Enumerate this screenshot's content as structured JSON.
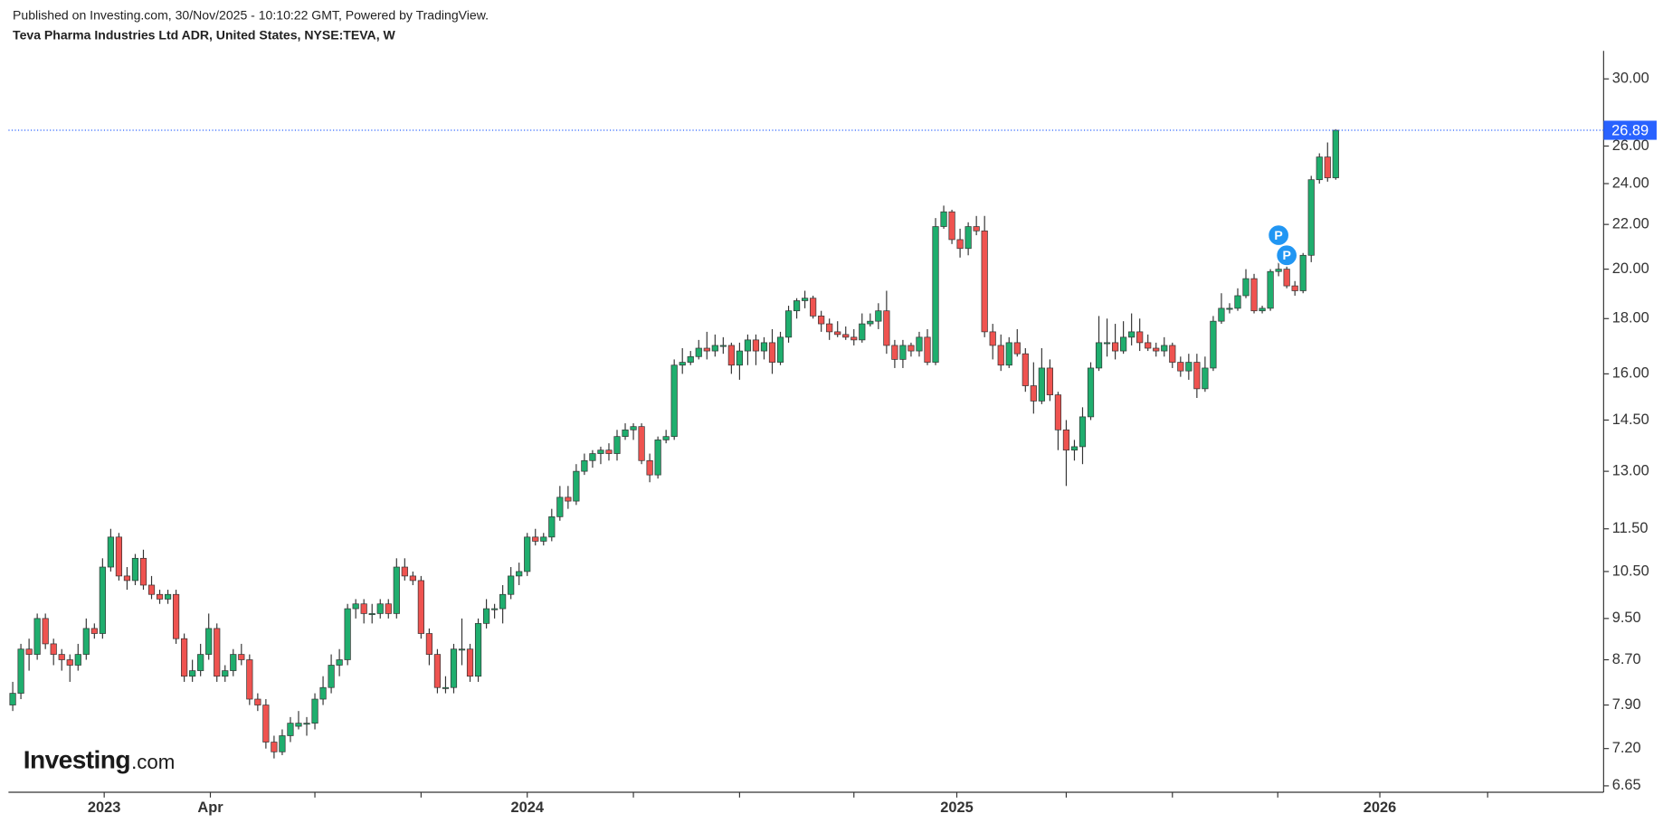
{
  "header": {
    "published": "Published on Investing.com, 30/Nov/2025 - 10:10:22 GMT, Powered by TradingView.",
    "instrument": "Teva Pharma Industries Ltd ADR, United States, NYSE:TEVA, W"
  },
  "logo": {
    "main": "Investing",
    "suffix": ".com"
  },
  "chart_data": {
    "type": "candlestick",
    "log_scale": true,
    "up_color": "#1fae6e",
    "down_color": "#ef5350",
    "last_price": 26.89,
    "last_price_color": "#2962ff",
    "xlim": [
      -0.52,
      194.8
    ],
    "ylim": [
      6.56,
      31.7
    ],
    "xticks": [
      {
        "value": 11.2,
        "label": "2023"
      },
      {
        "value": 24.2,
        "label": "Apr"
      },
      {
        "value": 63.0,
        "label": "2024"
      },
      {
        "value": 115.6,
        "label": "2025"
      },
      {
        "value": 167.4,
        "label": "2026"
      }
    ],
    "xminorticks": [
      37.0,
      50.0,
      76.0,
      89.0,
      103.0,
      129.0,
      142.0,
      154.9,
      180.6
    ],
    "yticks": [
      {
        "value": 6.65,
        "label": "6.65"
      },
      {
        "value": 7.2,
        "label": "7.20"
      },
      {
        "value": 7.9,
        "label": "7.90"
      },
      {
        "value": 8.7,
        "label": "8.70"
      },
      {
        "value": 9.5,
        "label": "9.50"
      },
      {
        "value": 10.5,
        "label": "10.50"
      },
      {
        "value": 11.5,
        "label": "11.50"
      },
      {
        "value": 13,
        "label": "13.00"
      },
      {
        "value": 14.5,
        "label": "14.50"
      },
      {
        "value": 16,
        "label": "16.00"
      },
      {
        "value": 18,
        "label": "18.00"
      },
      {
        "value": 20,
        "label": "20.00"
      },
      {
        "value": 22,
        "label": "22.00"
      },
      {
        "value": 24,
        "label": "24.00"
      },
      {
        "value": 26,
        "label": "26.00"
      },
      {
        "value": 30,
        "label": "30.00"
      }
    ],
    "events": [
      {
        "label": "P",
        "index": 155,
        "value": 21.5
      },
      {
        "label": "P",
        "index": 156,
        "value": 20.6
      }
    ],
    "candles": [
      [
        7.9,
        8.3,
        7.8,
        8.1
      ],
      [
        8.1,
        9.0,
        8.0,
        8.9
      ],
      [
        8.9,
        9.1,
        8.5,
        8.8
      ],
      [
        8.8,
        9.6,
        8.7,
        9.5
      ],
      [
        9.5,
        9.6,
        8.9,
        9.0
      ],
      [
        9.0,
        9.1,
        8.6,
        8.8
      ],
      [
        8.8,
        8.9,
        8.5,
        8.7
      ],
      [
        8.7,
        8.8,
        8.3,
        8.6
      ],
      [
        8.6,
        9.0,
        8.5,
        8.8
      ],
      [
        8.8,
        9.5,
        8.7,
        9.3
      ],
      [
        9.3,
        9.4,
        9.1,
        9.2
      ],
      [
        9.2,
        10.8,
        9.1,
        10.6
      ],
      [
        10.6,
        11.5,
        10.5,
        11.3
      ],
      [
        11.3,
        11.4,
        10.3,
        10.4
      ],
      [
        10.4,
        10.6,
        10.1,
        10.3
      ],
      [
        10.3,
        10.9,
        10.2,
        10.8
      ],
      [
        10.8,
        11.0,
        10.1,
        10.2
      ],
      [
        10.2,
        10.4,
        9.9,
        10.0
      ],
      [
        10.0,
        10.1,
        9.8,
        9.9
      ],
      [
        9.9,
        10.1,
        9.8,
        10.0
      ],
      [
        10.0,
        10.1,
        9.0,
        9.1
      ],
      [
        9.1,
        9.2,
        8.3,
        8.4
      ],
      [
        8.4,
        8.7,
        8.3,
        8.5
      ],
      [
        8.5,
        9.0,
        8.4,
        8.8
      ],
      [
        8.8,
        9.6,
        8.7,
        9.3
      ],
      [
        9.3,
        9.4,
        8.3,
        8.4
      ],
      [
        8.4,
        8.6,
        8.3,
        8.5
      ],
      [
        8.5,
        8.9,
        8.4,
        8.8
      ],
      [
        8.8,
        9.0,
        8.6,
        8.7
      ],
      [
        8.7,
        8.8,
        7.9,
        8.0
      ],
      [
        8.0,
        8.1,
        7.8,
        7.9
      ],
      [
        7.9,
        8.0,
        7.2,
        7.3
      ],
      [
        7.3,
        7.4,
        7.05,
        7.15
      ],
      [
        7.15,
        7.5,
        7.1,
        7.4
      ],
      [
        7.4,
        7.7,
        7.3,
        7.6
      ],
      [
        7.55,
        7.8,
        7.5,
        7.6
      ],
      [
        7.6,
        7.7,
        7.4,
        7.6
      ],
      [
        7.6,
        8.1,
        7.5,
        8.0
      ],
      [
        8.0,
        8.4,
        7.9,
        8.2
      ],
      [
        8.2,
        8.8,
        8.1,
        8.6
      ],
      [
        8.6,
        8.9,
        8.4,
        8.7
      ],
      [
        8.7,
        9.8,
        8.6,
        9.7
      ],
      [
        9.7,
        9.9,
        9.5,
        9.8
      ],
      [
        9.8,
        9.9,
        9.4,
        9.6
      ],
      [
        9.6,
        9.8,
        9.4,
        9.6
      ],
      [
        9.6,
        9.9,
        9.5,
        9.8
      ],
      [
        9.8,
        9.9,
        9.5,
        9.6
      ],
      [
        9.6,
        10.8,
        9.5,
        10.6
      ],
      [
        10.6,
        10.8,
        10.3,
        10.4
      ],
      [
        10.4,
        10.5,
        10.2,
        10.3
      ],
      [
        10.3,
        10.4,
        9.1,
        9.2
      ],
      [
        9.2,
        9.3,
        8.6,
        8.8
      ],
      [
        8.8,
        8.9,
        8.1,
        8.2
      ],
      [
        8.2,
        8.4,
        8.1,
        8.2
      ],
      [
        8.2,
        9.0,
        8.1,
        8.9
      ],
      [
        8.9,
        9.5,
        8.6,
        8.9
      ],
      [
        8.9,
        9.0,
        8.3,
        8.4
      ],
      [
        8.4,
        9.5,
        8.3,
        9.4
      ],
      [
        9.4,
        9.9,
        9.3,
        9.7
      ],
      [
        9.7,
        9.8,
        9.5,
        9.7
      ],
      [
        9.7,
        10.2,
        9.4,
        10.0
      ],
      [
        10.0,
        10.6,
        9.9,
        10.4
      ],
      [
        10.4,
        10.7,
        10.2,
        10.5
      ],
      [
        10.5,
        11.4,
        10.4,
        11.3
      ],
      [
        11.3,
        11.5,
        11.1,
        11.2
      ],
      [
        11.2,
        11.4,
        11.1,
        11.3
      ],
      [
        11.3,
        12.0,
        11.2,
        11.8
      ],
      [
        11.8,
        12.6,
        11.7,
        12.3
      ],
      [
        12.3,
        12.6,
        12.0,
        12.2
      ],
      [
        12.2,
        13.2,
        12.1,
        13.0
      ],
      [
        13.0,
        13.5,
        12.9,
        13.3
      ],
      [
        13.3,
        13.6,
        13.1,
        13.5
      ],
      [
        13.5,
        13.7,
        13.2,
        13.6
      ],
      [
        13.6,
        13.8,
        13.3,
        13.5
      ],
      [
        13.5,
        14.2,
        13.3,
        14.0
      ],
      [
        14.0,
        14.4,
        13.9,
        14.2
      ],
      [
        14.2,
        14.4,
        13.9,
        14.3
      ],
      [
        14.3,
        14.4,
        13.2,
        13.3
      ],
      [
        13.3,
        13.5,
        12.7,
        12.9
      ],
      [
        12.9,
        14.0,
        12.8,
        13.9
      ],
      [
        13.9,
        14.2,
        13.8,
        14.0
      ],
      [
        14.0,
        16.5,
        13.9,
        16.3
      ],
      [
        16.3,
        16.9,
        16.0,
        16.4
      ],
      [
        16.4,
        16.8,
        16.3,
        16.6
      ],
      [
        16.6,
        17.2,
        16.5,
        16.9
      ],
      [
        16.9,
        17.5,
        16.5,
        16.8
      ],
      [
        16.8,
        17.4,
        16.6,
        17.0
      ],
      [
        17.0,
        17.3,
        16.7,
        17.0
      ],
      [
        17.0,
        17.1,
        16.0,
        16.3
      ],
      [
        16.3,
        17.1,
        15.8,
        16.8
      ],
      [
        16.8,
        17.4,
        16.3,
        17.2
      ],
      [
        17.2,
        17.4,
        16.3,
        16.8
      ],
      [
        16.8,
        17.3,
        16.5,
        17.1
      ],
      [
        17.1,
        17.6,
        16.0,
        16.4
      ],
      [
        16.4,
        17.5,
        16.3,
        17.3
      ],
      [
        17.3,
        18.5,
        17.1,
        18.3
      ],
      [
        18.3,
        18.8,
        18.0,
        18.7
      ],
      [
        18.7,
        19.1,
        18.4,
        18.8
      ],
      [
        18.8,
        18.9,
        18.0,
        18.1
      ],
      [
        18.1,
        18.3,
        17.5,
        17.8
      ],
      [
        17.8,
        18.0,
        17.2,
        17.5
      ],
      [
        17.5,
        17.9,
        17.3,
        17.4
      ],
      [
        17.4,
        17.7,
        17.2,
        17.3
      ],
      [
        17.3,
        17.6,
        17.0,
        17.2
      ],
      [
        17.2,
        18.2,
        17.1,
        17.8
      ],
      [
        17.8,
        18.2,
        17.7,
        17.9
      ],
      [
        17.9,
        18.6,
        17.6,
        18.3
      ],
      [
        18.3,
        19.1,
        16.7,
        17.0
      ],
      [
        17.0,
        17.2,
        16.2,
        16.5
      ],
      [
        16.5,
        17.2,
        16.2,
        17.0
      ],
      [
        17.0,
        17.1,
        16.6,
        16.8
      ],
      [
        16.8,
        17.5,
        16.6,
        17.3
      ],
      [
        17.3,
        17.6,
        16.3,
        16.4
      ],
      [
        16.4,
        22.3,
        16.3,
        21.9
      ],
      [
        21.9,
        22.9,
        21.8,
        22.6
      ],
      [
        22.6,
        22.7,
        21.1,
        21.3
      ],
      [
        21.3,
        21.8,
        20.5,
        20.9
      ],
      [
        20.9,
        22.1,
        20.6,
        21.9
      ],
      [
        21.9,
        22.4,
        21.5,
        21.7
      ],
      [
        21.7,
        22.4,
        17.3,
        17.5
      ],
      [
        17.5,
        17.8,
        16.5,
        17.0
      ],
      [
        17.0,
        17.4,
        16.1,
        16.3
      ],
      [
        16.3,
        17.3,
        16.2,
        17.1
      ],
      [
        17.1,
        17.6,
        16.6,
        16.7
      ],
      [
        16.7,
        16.9,
        15.4,
        15.6
      ],
      [
        15.6,
        16.4,
        14.7,
        15.1
      ],
      [
        15.1,
        16.9,
        15.0,
        16.2
      ],
      [
        16.2,
        16.5,
        15.1,
        15.3
      ],
      [
        15.3,
        15.4,
        13.6,
        14.2
      ],
      [
        14.2,
        14.5,
        12.6,
        13.6
      ],
      [
        13.6,
        13.9,
        13.3,
        13.7
      ],
      [
        13.7,
        14.9,
        13.2,
        14.6
      ],
      [
        14.6,
        16.4,
        14.5,
        16.2
      ],
      [
        16.2,
        18.1,
        16.1,
        17.1
      ],
      [
        17.1,
        18.0,
        16.6,
        17.1
      ],
      [
        17.1,
        17.8,
        16.5,
        16.8
      ],
      [
        16.8,
        17.9,
        16.7,
        17.3
      ],
      [
        17.3,
        18.2,
        17.0,
        17.5
      ],
      [
        17.5,
        18.0,
        16.8,
        17.1
      ],
      [
        17.1,
        17.4,
        16.8,
        16.9
      ],
      [
        16.9,
        17.1,
        16.6,
        16.8
      ],
      [
        16.8,
        17.3,
        16.6,
        17.0
      ],
      [
        17.0,
        17.1,
        16.2,
        16.4
      ],
      [
        16.4,
        16.6,
        15.9,
        16.1
      ],
      [
        16.1,
        16.7,
        15.8,
        16.4
      ],
      [
        16.4,
        16.7,
        15.2,
        15.5
      ],
      [
        15.5,
        16.6,
        15.4,
        16.2
      ],
      [
        16.2,
        18.1,
        16.1,
        17.9
      ],
      [
        17.9,
        19.0,
        17.8,
        18.4
      ],
      [
        18.4,
        18.6,
        18.2,
        18.4
      ],
      [
        18.4,
        19.2,
        18.3,
        18.9
      ],
      [
        18.9,
        20.0,
        18.8,
        19.6
      ],
      [
        19.6,
        19.8,
        18.2,
        18.3
      ],
      [
        18.3,
        18.5,
        18.2,
        18.4
      ],
      [
        18.4,
        20.0,
        18.3,
        19.9
      ],
      [
        19.9,
        20.8,
        19.7,
        20.0
      ],
      [
        20.0,
        20.2,
        19.2,
        19.3
      ],
      [
        19.3,
        19.5,
        18.9,
        19.1
      ],
      [
        19.1,
        20.7,
        19.0,
        20.6
      ],
      [
        20.6,
        24.4,
        20.3,
        24.2
      ],
      [
        24.2,
        25.6,
        24.0,
        25.4
      ],
      [
        25.4,
        26.2,
        24.1,
        24.3
      ],
      [
        24.3,
        26.95,
        24.2,
        26.89
      ]
    ]
  }
}
